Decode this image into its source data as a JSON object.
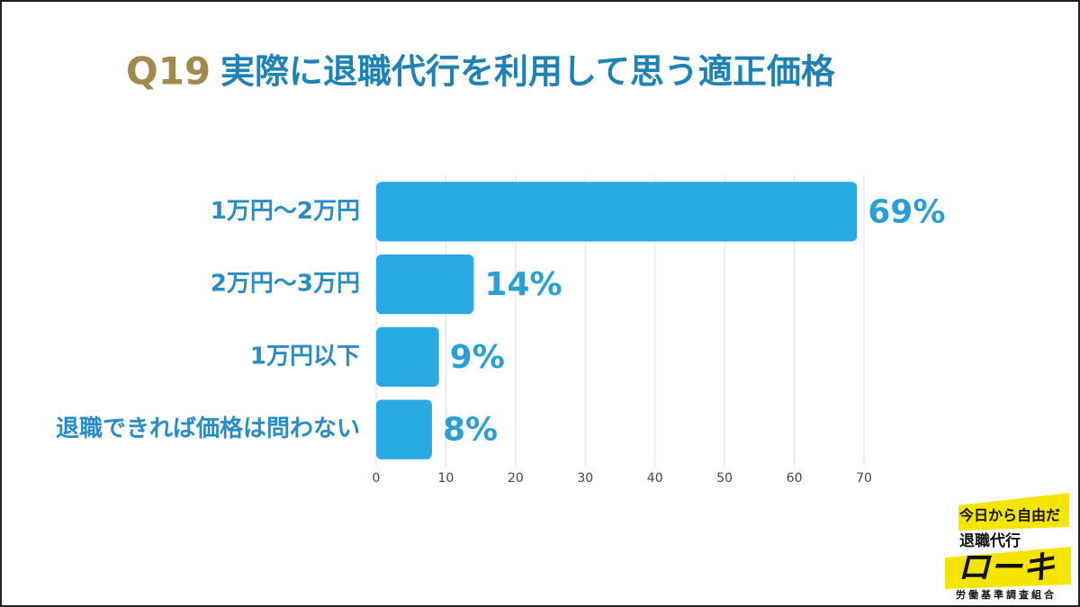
{
  "chart_data": {
    "type": "bar",
    "orientation": "horizontal",
    "title_prefix": "Q19",
    "title": "実際に退職代行を利用して思う適正価格",
    "categories": [
      "1万円〜2万円",
      "2万円〜3万円",
      "1万円以下",
      "退職できれば価格は問わない"
    ],
    "values": [
      69,
      14,
      9,
      8
    ],
    "value_labels": [
      "69%",
      "14%",
      "9%",
      "8%"
    ],
    "color": "#29a9e1",
    "xlim": [
      0,
      70
    ],
    "xticks": [
      0,
      10,
      20,
      30,
      40,
      50,
      60,
      70
    ],
    "grid": true
  },
  "logo": {
    "tagline": "今日から自由だ",
    "service": "退職代行",
    "brand": "ローキ",
    "org": "労働基準調査組合"
  }
}
